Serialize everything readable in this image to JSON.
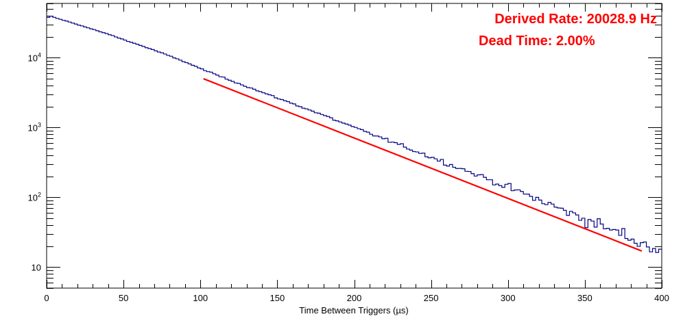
{
  "chart_data": {
    "type": "line",
    "title": "",
    "xlabel": "Time Between Triggers (µs)",
    "ylabel": "",
    "xlim": [
      0,
      400
    ],
    "ylim": [
      5,
      60000
    ],
    "yscale": "log",
    "grid": false,
    "x_ticks": [
      "0",
      "50",
      "100",
      "150",
      "200",
      "250",
      "300",
      "350",
      "400"
    ],
    "y_ticks": [
      {
        "value": 10,
        "base": "10",
        "exp": ""
      },
      {
        "value": 100,
        "base": "10",
        "exp": "2"
      },
      {
        "value": 1000,
        "base": "10",
        "exp": "3"
      },
      {
        "value": 10000,
        "base": "10",
        "exp": "4"
      }
    ],
    "series": [
      {
        "role": "histogram",
        "color": "#000080",
        "x": [
          0,
          2,
          4,
          6,
          10,
          20,
          30,
          40,
          50,
          60,
          70,
          80,
          90,
          100,
          120,
          140,
          160,
          180,
          200,
          220,
          240,
          260,
          280,
          300,
          320,
          340,
          360,
          380,
          400
        ],
        "y": [
          36000,
          39500,
          39000,
          37000,
          35000,
          30000,
          25500,
          21800,
          18200,
          15300,
          12800,
          10600,
          8700,
          7000,
          4700,
          3200,
          2200,
          1500,
          1000,
          680,
          460,
          310,
          210,
          140,
          92,
          60,
          40,
          26,
          17
        ]
      },
      {
        "role": "fit",
        "color": "#ff0000",
        "x": [
          102,
          387
        ],
        "y": [
          5000,
          17
        ]
      }
    ],
    "annotations": [
      {
        "text": "Derived Rate: 20028.9 Hz",
        "color": "#ff0000"
      },
      {
        "text": "Dead Time: 2.00%",
        "color": "#ff0000"
      }
    ]
  }
}
